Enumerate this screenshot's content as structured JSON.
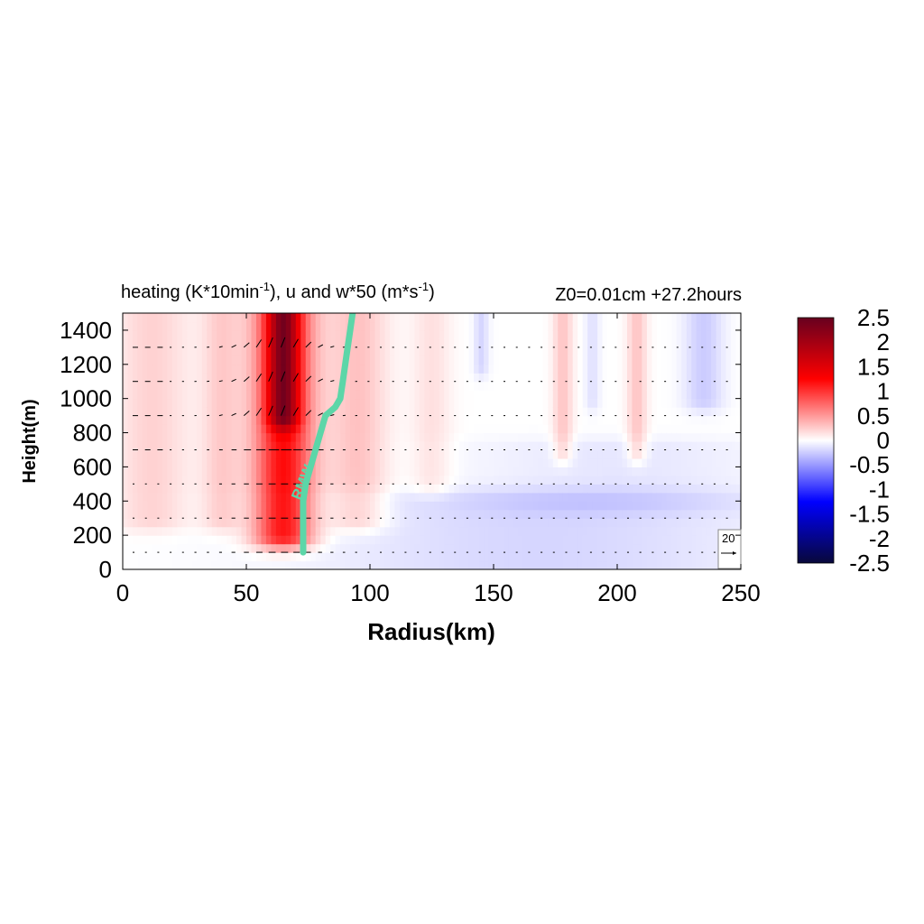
{
  "chart_data": {
    "type": "heatmap",
    "title_main": "heating (K*10min",
    "title_sup1": "-1",
    "title_mid": "), u and w*50 (m*s",
    "title_sup2": "-1",
    "title_end": ")",
    "subtitle": "Z0=0.01cm  +27.2hours",
    "xlabel": "Radius(km)",
    "ylabel": "Height(m)",
    "xlim": [
      0,
      250
    ],
    "ylim": [
      0,
      1500
    ],
    "xticks": [
      0,
      50,
      100,
      150,
      200,
      250
    ],
    "yticks": [
      0,
      200,
      400,
      600,
      800,
      1000,
      1200,
      1400
    ],
    "colorbar": {
      "ticks": [
        2.5,
        2,
        1.5,
        1,
        0.5,
        0,
        -0.5,
        -1,
        -1.5,
        -2,
        -2.5
      ],
      "range": [
        -2.5,
        2.5
      ],
      "colors": [
        "#67001f",
        "#ff0000",
        "#ffffff",
        "#0000ff",
        "#08083a"
      ]
    },
    "heating_bands": [
      {
        "x": 65,
        "halfwidth": 12,
        "zmin": 200,
        "zmax": 1500,
        "value": 1.2
      },
      {
        "x": 65,
        "halfwidth": 6,
        "zmin": 900,
        "zmax": 1500,
        "value": 1.2
      },
      {
        "x": 95,
        "halfwidth": 12,
        "zmin": 300,
        "zmax": 1500,
        "value": 0.3
      },
      {
        "x": 12,
        "halfwidth": 15,
        "zmin": 300,
        "zmax": 1500,
        "value": 0.22
      },
      {
        "x": 40,
        "halfwidth": 8,
        "zmin": 300,
        "zmax": 1500,
        "value": 0.25
      },
      {
        "x": 125,
        "halfwidth": 8,
        "zmin": 500,
        "zmax": 1500,
        "value": 0.15
      },
      {
        "x": 178,
        "halfwidth": 4,
        "zmin": 700,
        "zmax": 1500,
        "value": 0.28
      },
      {
        "x": 208,
        "halfwidth": 4,
        "zmin": 700,
        "zmax": 1500,
        "value": 0.28
      },
      {
        "x": 145,
        "halfwidth": 3,
        "zmin": 1200,
        "zmax": 1500,
        "value": -0.2
      },
      {
        "x": 190,
        "halfwidth": 3,
        "zmin": 1000,
        "zmax": 1500,
        "value": -0.15
      },
      {
        "x": 235,
        "halfwidth": 8,
        "zmin": 1000,
        "zmax": 1500,
        "value": -0.25
      },
      {
        "x": 170,
        "halfwidth": 90,
        "zmin": 0,
        "zmax": 400,
        "value": -0.2
      },
      {
        "x": 200,
        "halfwidth": 60,
        "zmin": 400,
        "zmax": 700,
        "value": -0.12
      }
    ],
    "vector_levels": [
      100,
      300,
      500,
      700,
      900,
      1100,
      1300
    ],
    "vector_reference": {
      "label": "20",
      "value": 20
    },
    "rmw": {
      "label": "RMW",
      "color": "#5cd6a8",
      "radius": [
        73,
        73,
        73,
        74,
        76,
        78,
        80,
        82,
        86,
        88,
        89,
        90,
        91,
        92,
        93
      ],
      "height": [
        100,
        300,
        400,
        500,
        600,
        700,
        800,
        900,
        950,
        1000,
        1100,
        1200,
        1300,
        1400,
        1500
      ]
    }
  }
}
